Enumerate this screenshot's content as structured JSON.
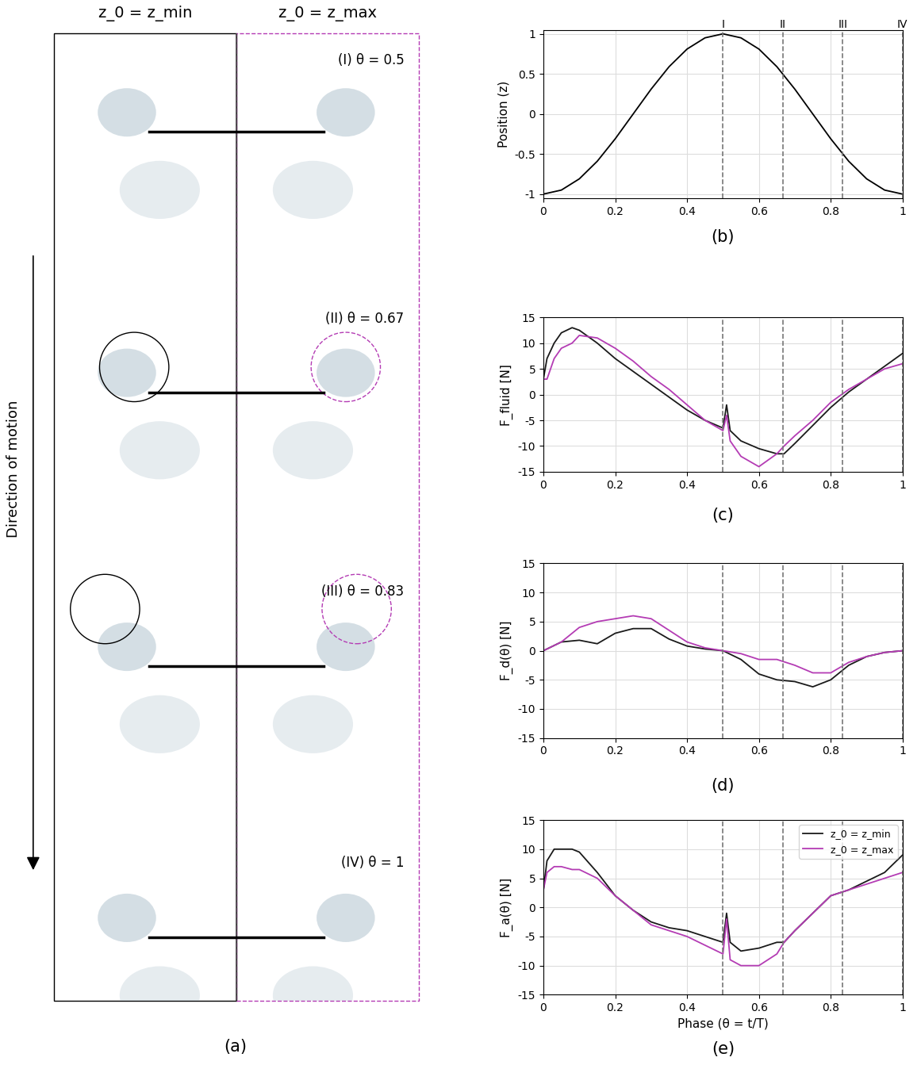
{
  "image_panel": {
    "columns": [
      "z_0 = z_min",
      "z_0 = z_max"
    ],
    "snapshots": [
      "(I) θ = 0.5",
      "(II) θ = 0.67",
      "(III) θ = 0.83",
      "(IV) θ = 1"
    ],
    "arrow_label": "Direction of motion",
    "caption": "(a)"
  },
  "chart_data": [
    {
      "type": "line",
      "caption": "(b)",
      "ylabel": "Position (z)",
      "xlim": [
        0,
        1
      ],
      "xticks": [
        0,
        0.2,
        0.4,
        0.6,
        0.8,
        1
      ],
      "ylim": [
        -1.05,
        1.05
      ],
      "yticks": [
        -1,
        -0.5,
        0,
        0.5,
        1
      ],
      "grid": true,
      "vlines": [
        {
          "x": 0.5,
          "label": "I"
        },
        {
          "x": 0.667,
          "label": "II"
        },
        {
          "x": 0.833,
          "label": "III"
        },
        {
          "x": 1,
          "label": "IV"
        }
      ],
      "x": [
        0,
        0.05,
        0.1,
        0.15,
        0.2,
        0.25,
        0.3,
        0.35,
        0.4,
        0.45,
        0.5,
        0.55,
        0.6,
        0.65,
        0.7,
        0.75,
        0.8,
        0.85,
        0.9,
        0.95,
        1
      ],
      "series": [
        {
          "name": null,
          "color": "#000000",
          "values": [
            -1,
            -0.95,
            -0.81,
            -0.59,
            -0.31,
            0,
            0.31,
            0.59,
            0.81,
            0.95,
            1,
            0.95,
            0.81,
            0.59,
            0.31,
            0,
            -0.31,
            -0.59,
            -0.81,
            -0.95,
            -1
          ]
        }
      ]
    },
    {
      "type": "line",
      "caption": "(c)",
      "ylabel": "F_fluid [N]",
      "xlim": [
        0,
        1
      ],
      "xticks": [
        0,
        0.2,
        0.4,
        0.6,
        0.8,
        1
      ],
      "ylim": [
        -15,
        15
      ],
      "yticks": [
        -15,
        -10,
        -5,
        0,
        5,
        10,
        15
      ],
      "grid": true,
      "vlines": [
        {
          "x": 0.5
        },
        {
          "x": 0.667
        },
        {
          "x": 0.833
        },
        {
          "x": 1
        }
      ],
      "x": [
        0,
        0.01,
        0.03,
        0.05,
        0.08,
        0.1,
        0.15,
        0.2,
        0.25,
        0.3,
        0.35,
        0.4,
        0.45,
        0.5,
        0.51,
        0.52,
        0.55,
        0.6,
        0.65,
        0.67,
        0.7,
        0.75,
        0.8,
        0.85,
        0.9,
        0.95,
        1
      ],
      "series": [
        {
          "name": "z_0 = z_min",
          "color": "#1a1a1a",
          "values": [
            3,
            7,
            10,
            12,
            13,
            12.5,
            10,
            7,
            4.5,
            2,
            -0.5,
            -3,
            -5,
            -6.5,
            -2,
            -7,
            -9,
            -10.5,
            -11.5,
            -11.5,
            -9.5,
            -6,
            -2.5,
            0.5,
            3,
            5.5,
            8
          ]
        },
        {
          "name": "z_0 = z_max",
          "color": "#b43cb4",
          "values": [
            3,
            3,
            7,
            9,
            10,
            11.5,
            11,
            9,
            6.5,
            3.5,
            1,
            -2,
            -5,
            -7,
            -4,
            -9,
            -12,
            -14,
            -11.5,
            -10,
            -8,
            -5,
            -1.5,
            1,
            3,
            5,
            6
          ]
        }
      ]
    },
    {
      "type": "line",
      "caption": "(d)",
      "ylabel": "F_d(θ) [N]",
      "xlim": [
        0,
        1
      ],
      "xticks": [
        0,
        0.2,
        0.4,
        0.6,
        0.8,
        1
      ],
      "ylim": [
        -15,
        15
      ],
      "yticks": [
        -15,
        -10,
        -5,
        0,
        5,
        10,
        15
      ],
      "grid": true,
      "vlines": [
        {
          "x": 0.5
        },
        {
          "x": 0.667
        },
        {
          "x": 0.833
        },
        {
          "x": 1
        }
      ],
      "x": [
        0,
        0.05,
        0.1,
        0.15,
        0.2,
        0.25,
        0.3,
        0.35,
        0.4,
        0.45,
        0.5,
        0.55,
        0.6,
        0.65,
        0.7,
        0.75,
        0.8,
        0.85,
        0.9,
        0.95,
        1
      ],
      "series": [
        {
          "name": "z_0 = z_min",
          "color": "#1a1a1a",
          "values": [
            0,
            1.5,
            1.8,
            1.2,
            3,
            3.8,
            3.8,
            2,
            0.8,
            0.3,
            0,
            -1.5,
            -4,
            -5,
            -5.3,
            -6.2,
            -5,
            -2.5,
            -1,
            -0.3,
            0
          ]
        },
        {
          "name": "z_0 = z_max",
          "color": "#b43cb4",
          "values": [
            0,
            1.5,
            4,
            5,
            5.5,
            6,
            5.5,
            3.5,
            1.5,
            0.5,
            0,
            -0.5,
            -1.5,
            -1.5,
            -2.5,
            -3.8,
            -3.8,
            -2,
            -1,
            -0.3,
            0
          ]
        }
      ]
    },
    {
      "type": "line",
      "caption": "(e)",
      "ylabel": "F_a(θ) [N]",
      "xlabel": "Phase (θ = t/T)",
      "xlim": [
        0,
        1
      ],
      "xticks": [
        0,
        0.2,
        0.4,
        0.6,
        0.8,
        1
      ],
      "ylim": [
        -15,
        15
      ],
      "yticks": [
        -15,
        -10,
        -5,
        0,
        5,
        10,
        15
      ],
      "grid": true,
      "legend": "upper right",
      "vlines": [
        {
          "x": 0.5
        },
        {
          "x": 0.667
        },
        {
          "x": 0.833
        },
        {
          "x": 1
        }
      ],
      "x": [
        0,
        0.01,
        0.03,
        0.05,
        0.08,
        0.1,
        0.15,
        0.2,
        0.25,
        0.3,
        0.35,
        0.4,
        0.45,
        0.5,
        0.51,
        0.52,
        0.55,
        0.6,
        0.65,
        0.67,
        0.7,
        0.75,
        0.8,
        0.85,
        0.9,
        0.95,
        1
      ],
      "series": [
        {
          "name": "z_0 = z_min",
          "color": "#1a1a1a",
          "values": [
            3,
            8,
            10,
            10,
            10,
            9.5,
            6,
            2,
            -0.5,
            -2.5,
            -3.5,
            -4,
            -5,
            -6,
            -1,
            -6,
            -7.5,
            -7,
            -6,
            -6,
            -4,
            -1,
            2,
            3,
            4.5,
            6,
            9
          ]
        },
        {
          "name": "z_0 = z_max",
          "color": "#b43cb4",
          "values": [
            3,
            6,
            7,
            7,
            6.5,
            6.5,
            5,
            2,
            -0.5,
            -3,
            -4,
            -5,
            -6.5,
            -8,
            -2,
            -9,
            -10,
            -10,
            -8,
            -6,
            -4,
            -1,
            2,
            3,
            4,
            5,
            6
          ]
        }
      ]
    }
  ]
}
